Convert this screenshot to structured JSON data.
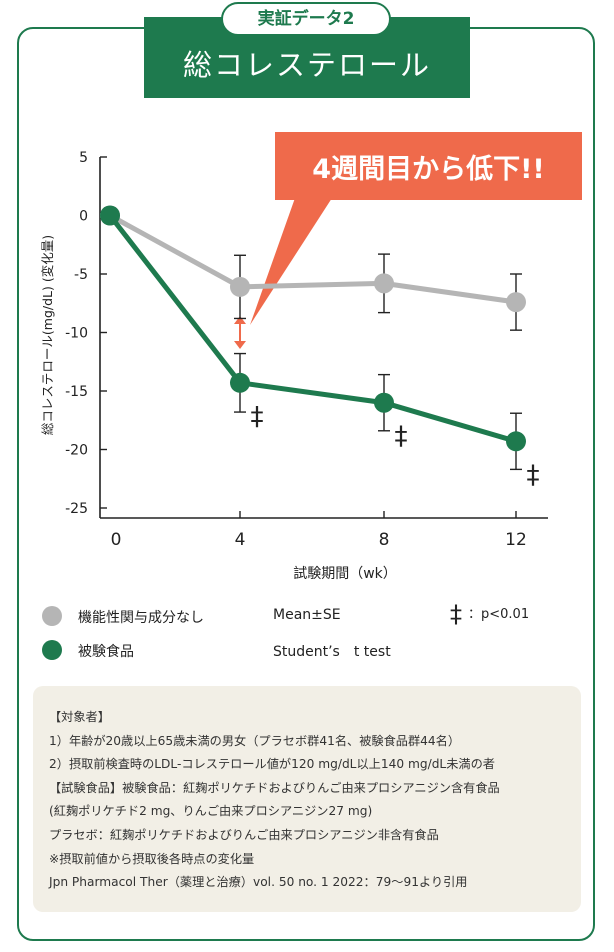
{
  "header": {
    "badge": "実証データ2",
    "title": "総コレステロール"
  },
  "callout": {
    "text": "4週間目から低下!!",
    "color": "#ef6a4b"
  },
  "colors": {
    "green": "#1e7a4e",
    "gray": "#b5b5b5",
    "accent": "#ef6a4b",
    "notes_bg": "#f2efe6"
  },
  "chart_data": {
    "type": "line",
    "xlabel": "試験期間（wk）",
    "ylabel": "総コレステロール(mg/dL) (変化量)",
    "x": [
      0,
      4,
      8,
      12
    ],
    "x_tick_labels": [
      "0",
      "4",
      "8",
      "12"
    ],
    "ylim": [
      -25,
      5
    ],
    "y_ticks": [
      5,
      0,
      -5,
      -10,
      -15,
      -20,
      -25
    ],
    "y_tick_labels": [
      "5",
      "0",
      "-5",
      "-10",
      "-15",
      "-20",
      "-25"
    ],
    "series": [
      {
        "name": "機能性関与成分なし",
        "color": "#b5b5b5",
        "values": [
          0,
          -6.1,
          -5.8,
          -7.4
        ],
        "errors": [
          0,
          2.7,
          2.5,
          2.4
        ]
      },
      {
        "name": "被験食品",
        "color": "#1e7a4e",
        "values": [
          0,
          -14.3,
          -16.0,
          -19.3
        ],
        "errors": [
          0,
          2.5,
          2.4,
          2.4
        ],
        "significance": [
          "",
          "‡",
          "‡",
          "‡"
        ]
      }
    ]
  },
  "legend": {
    "placebo": "機能性関与成分なし",
    "test": "被験食品",
    "stat1": "Mean±SE",
    "stat2": "Student’s　t test",
    "sig_symbol": "‡",
    "sig_label": "：p<0.01"
  },
  "notes": [
    "【対象者】",
    "1）年齢が20歳以上65歳未満の男女（プラセボ群41名、被験食品群44名）",
    "2）摂取前検査時のLDL-コレステロール値が120 mg/dL以上140 mg/dL未満の者",
    "【試験食品】被験食品：紅麹ポリケチドおよびりんご由来プロシアニジン含有食品",
    "(紅麹ポリケチド2 mg、りんご由来プロシアニジン27 mg)",
    "プラセボ：紅麹ポリケチドおよびりんご由来プロシアニジン非含有食品",
    "※摂取前値から摂取後各時点の変化量",
    "Jpn Pharmacol Ther（薬理と治療）vol. 50 no. 1 2022：79～91より引用"
  ]
}
